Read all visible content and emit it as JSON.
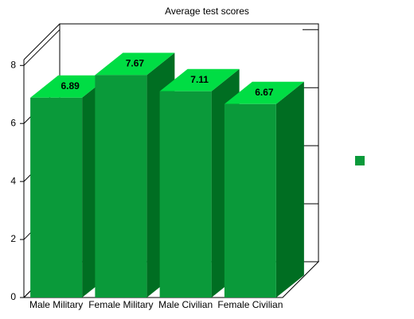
{
  "chart_data": {
    "type": "bar3d",
    "title": "Average test scores",
    "categories": [
      "Male Military",
      "Female Military",
      "Male Civilian",
      "Female Civilian"
    ],
    "values": [
      6.89,
      7.67,
      7.11,
      6.67
    ],
    "color": "#0a9a3a",
    "ylim": [
      0,
      8.2
    ],
    "yticks": [
      0,
      2,
      4,
      6,
      8
    ],
    "grid": true
  }
}
